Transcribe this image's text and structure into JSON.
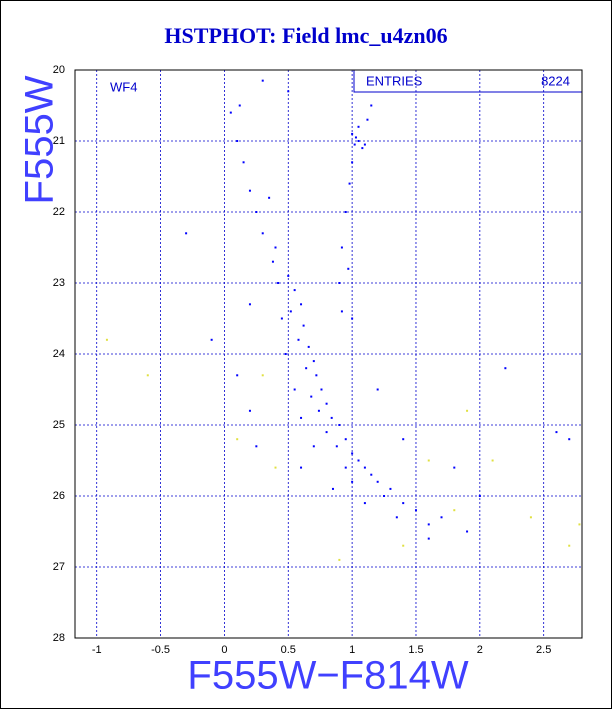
{
  "chart_data": {
    "type": "scatter",
    "title": "HSTPHOT: Field lmc_u4zn06",
    "xlabel": "F555W−F814W",
    "ylabel": "F555W",
    "annotation": "WF4",
    "stats": {
      "label": "ENTRIES",
      "value": 8224
    },
    "xlim": [
      -1.17,
      2.8
    ],
    "ylim": [
      20,
      28
    ],
    "y_inverted": true,
    "grid": true,
    "xticks": [
      -1,
      -0.5,
      0,
      0.5,
      1,
      1.5,
      2,
      2.5
    ],
    "yticks": [
      20,
      21,
      22,
      23,
      24,
      25,
      26,
      27,
      28
    ],
    "series": [
      {
        "color": "#0000ff",
        "x": [
          0.5,
          0.55,
          0.6,
          0.52,
          0.62,
          0.58,
          0.66,
          0.7,
          0.64,
          0.72,
          0.76,
          0.68,
          0.8,
          0.74,
          0.84,
          0.9,
          0.8,
          0.95,
          0.88,
          1.0,
          1.05,
          0.95,
          1.1,
          1.15,
          1.2,
          1.0,
          1.3,
          1.25,
          1.4,
          1.5,
          1.35,
          1.6,
          1.1,
          0.85,
          0.7,
          0.6,
          0.55,
          0.48,
          0.45,
          0.42,
          0.38,
          0.3,
          0.25,
          0.2,
          0.15,
          0.1,
          0.05,
          0.12,
          0.35,
          0.4,
          0.9,
          0.92,
          0.95,
          0.98,
          1.0,
          1.02,
          1.05,
          1.08,
          1.03,
          1.1,
          1.0,
          1.12,
          1.15,
          1.05,
          0.97,
          0.92,
          0.2,
          -0.1,
          0.1,
          0.2,
          0.25,
          1.8,
          2.0,
          2.2,
          2.6,
          2.7,
          1.9,
          1.6,
          0.3,
          1.0,
          1.2,
          1.4,
          -0.3,
          0.6,
          1.7,
          0.5
        ],
        "values": [
          22.9,
          23.1,
          23.3,
          23.4,
          23.6,
          23.8,
          23.9,
          24.1,
          24.2,
          24.3,
          24.5,
          24.6,
          24.7,
          24.8,
          24.9,
          25.0,
          25.1,
          25.2,
          25.3,
          25.4,
          25.5,
          25.6,
          25.6,
          25.7,
          25.8,
          25.8,
          25.9,
          26.0,
          26.1,
          26.2,
          26.3,
          26.4,
          26.1,
          25.9,
          25.3,
          24.9,
          24.5,
          24.0,
          23.5,
          23.0,
          22.7,
          22.3,
          22.0,
          21.7,
          21.3,
          21.0,
          20.6,
          20.5,
          21.8,
          22.5,
          23.0,
          22.5,
          22.0,
          21.6,
          21.3,
          21.05,
          21.0,
          21.1,
          20.95,
          21.05,
          20.9,
          20.7,
          20.5,
          20.8,
          22.8,
          23.4,
          23.3,
          23.8,
          24.3,
          24.8,
          25.3,
          25.6,
          26.0,
          24.2,
          25.1,
          25.2,
          26.5,
          26.6,
          20.15,
          23.5,
          24.5,
          25.2,
          22.3,
          25.6,
          26.3,
          20.3
        ]
      },
      {
        "color": "#e0e040",
        "x": [
          -0.92,
          -0.6,
          0.3,
          0.1,
          1.9,
          2.4,
          2.7,
          2.78,
          0.4,
          1.6,
          1.8,
          2.1,
          0.9,
          1.4
        ],
        "values": [
          23.8,
          24.3,
          24.3,
          25.2,
          24.8,
          26.3,
          26.7,
          26.4,
          25.6,
          25.5,
          26.2,
          25.5,
          26.9,
          26.7
        ]
      }
    ]
  }
}
